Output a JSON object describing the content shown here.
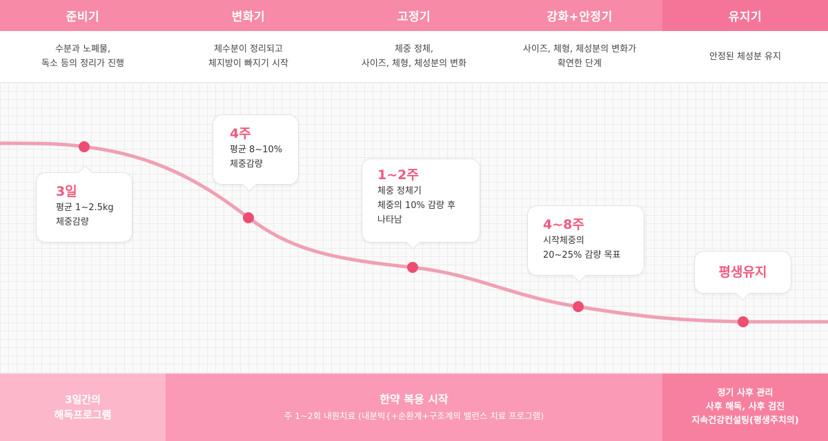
{
  "phases": [
    {
      "title": "준비기",
      "desc": "수분과 노폐물,\n독소 등의 정리가 진행"
    },
    {
      "title": "변화기",
      "desc": "체수분이 정리되고\n체지방이 빠지기 시작"
    },
    {
      "title": "고정기",
      "desc": "체중 정체,\n사이즈, 체형, 체성분의 변화"
    },
    {
      "title": "강화+안정기",
      "desc": "사이즈, 체형, 체성분의 변화가\n확연한 단계"
    },
    {
      "title": "유지기",
      "desc": "안정된 체성분 유지"
    }
  ],
  "bubbles": [
    {
      "title": "3일",
      "text": "평균 1~2.5kg\n체중감량"
    },
    {
      "title": "4주",
      "text": "평균 8~10%\n체중감량"
    },
    {
      "title": "1~2주",
      "text": "체중 정체기\n체중의 10% 감량 후\n나타남"
    },
    {
      "title": "4~8주",
      "text": "시작체중의\n20~25% 감량 목표"
    },
    {
      "title": "평생유지",
      "text": ""
    }
  ],
  "footer": {
    "detox": "3일간의\n해독프로그램",
    "herbal_title": "한약 복용 시작",
    "herbal_sub": "주 1~2회 내원치료 (내분빅{+순환계+구조계의 밸런스 치료 프로그램)",
    "aftercare": [
      "정기 사후 관리",
      "사후 해독, 사후 검진",
      "지속건강컨설팅(평생주치의)"
    ]
  },
  "colors": {
    "header": "#f78aa6",
    "curve": "#f0a0b4",
    "dot": "#ee4d72",
    "accent_text": "#f05a7e",
    "footer_detox": "#fdb7cb",
    "footer_herbal": "#fa9ab6",
    "footer_aftercare": "#f7809f"
  }
}
